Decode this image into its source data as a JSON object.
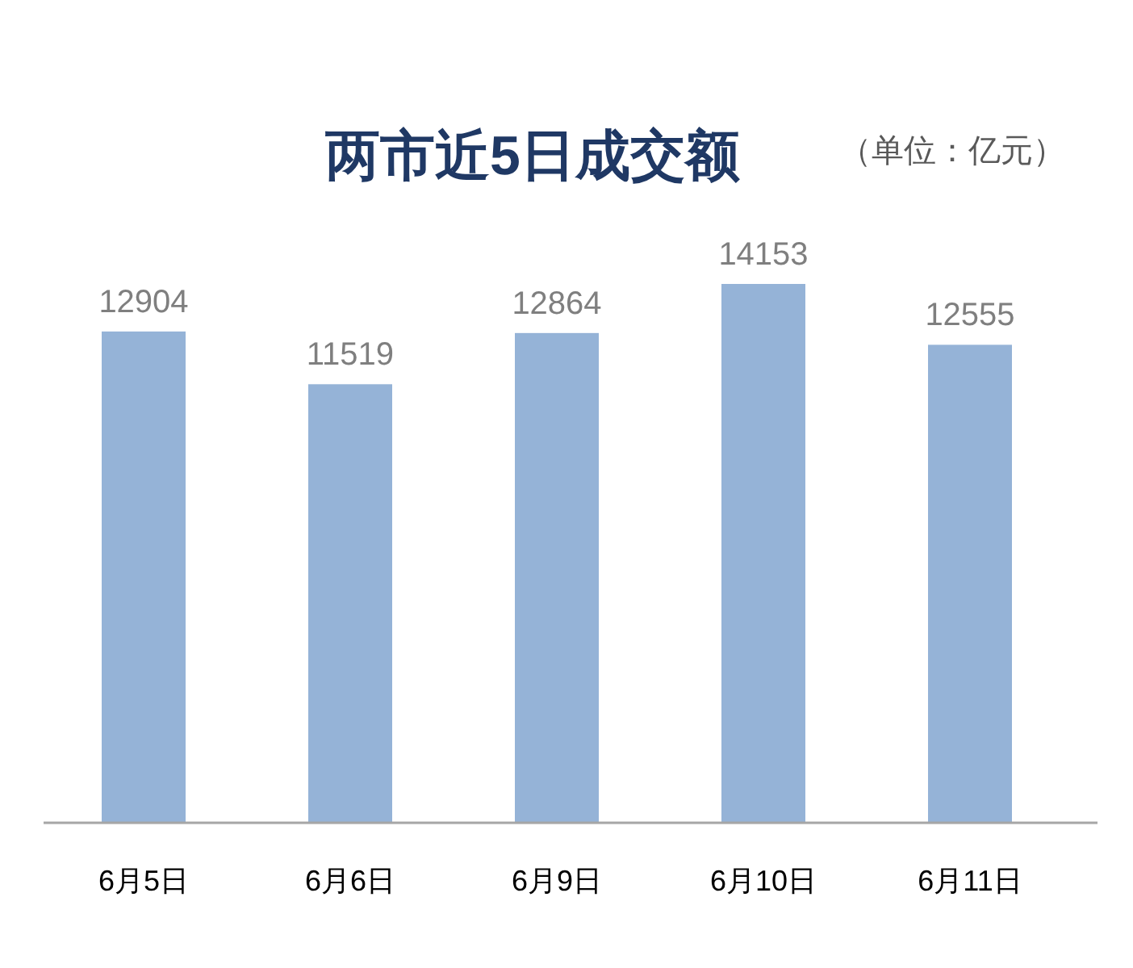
{
  "chart_data": {
    "type": "bar",
    "title": "两市近5日成交额",
    "annotations": [
      "（单位：亿元）"
    ],
    "categories": [
      "6月5日",
      "6月6日",
      "6月9日",
      "6月10日",
      "6月11日"
    ],
    "values": [
      12904,
      11519,
      12864,
      14153,
      12555
    ],
    "color": "#95b3d7",
    "data_labels": true
  }
}
